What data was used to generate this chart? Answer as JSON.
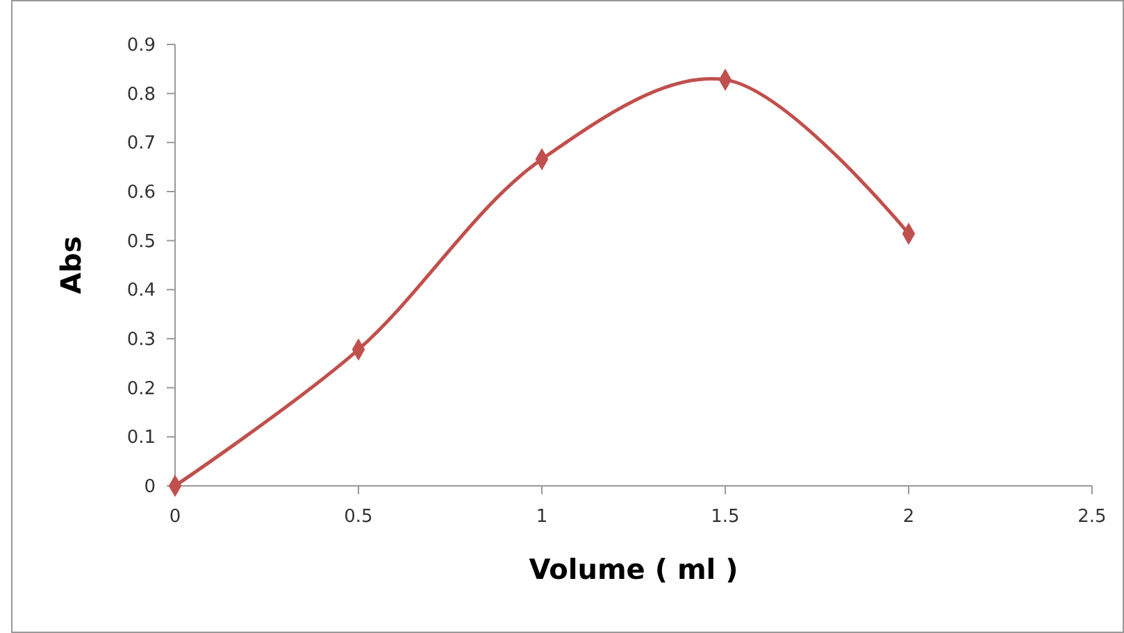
{
  "chart_data": {
    "type": "line",
    "xlabel": "Volume ( ml )",
    "ylabel": "Abs",
    "x": [
      0,
      0.5,
      1,
      1.5,
      2
    ],
    "series": [
      {
        "color": "#c0504d",
        "values": [
          0,
          0.278,
          0.666,
          0.828,
          0.514
        ]
      }
    ],
    "xlim": [
      0,
      2.5
    ],
    "xticks": [
      0,
      0.5,
      1,
      1.5,
      2,
      2.5
    ],
    "ylim": [
      0,
      0.9
    ],
    "yticks": [
      0,
      0.1,
      0.2,
      0.3,
      0.4,
      0.5,
      0.6,
      0.7,
      0.8,
      0.9
    ],
    "marker": "diamond",
    "line_style": "solid",
    "grid": false
  }
}
